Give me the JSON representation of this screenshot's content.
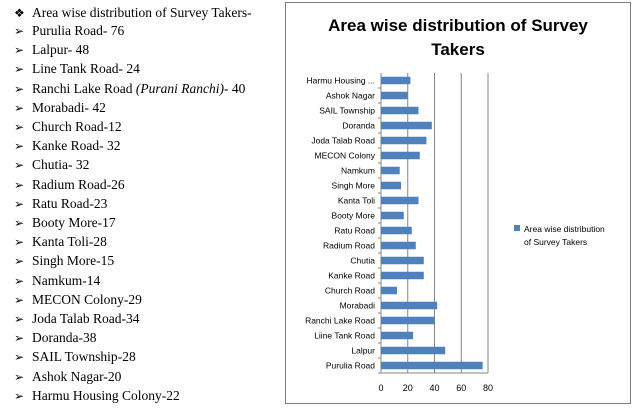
{
  "list": {
    "heading": "Area wise distribution of Survey Takers-",
    "heading_bullet": "❖",
    "item_bullet": "➢",
    "items": [
      {
        "name": "Purulia Road",
        "sep": "- ",
        "value": "76"
      },
      {
        "name": "Lalpur",
        "sep": "- ",
        "value": "48"
      },
      {
        "name": "Line Tank Road",
        "sep": "- ",
        "value": "24"
      },
      {
        "name": "Ranchi Lake Road ",
        "italic": "(Purani Ranchi)",
        "sep": "- ",
        "value": "40"
      },
      {
        "name": "Morabadi",
        "sep": "- ",
        "value": "42"
      },
      {
        "name": "Church Road",
        "sep": "-",
        "value": "12"
      },
      {
        "name": "Kanke Road",
        "sep": "- ",
        "value": "32"
      },
      {
        "name": "Chutia",
        "sep": "- ",
        "value": "32"
      },
      {
        "name": "Radium Road",
        "sep": "-",
        "value": "26"
      },
      {
        "name": "Ratu Road",
        "sep": "-",
        "value": "23"
      },
      {
        "name": "Booty More",
        "sep": "-",
        "value": "17"
      },
      {
        "name": "Kanta Toli",
        "sep": "-",
        "value": "28"
      },
      {
        "name": "Singh More",
        "sep": "-",
        "value": "15"
      },
      {
        "name": "Namkum",
        "sep": "-",
        "value": "14"
      },
      {
        "name": "MECON Colony",
        "sep": "-",
        "value": "29"
      },
      {
        "name": "Joda Talab Road",
        "sep": "-",
        "value": "34"
      },
      {
        "name": "Doranda",
        "sep": "-",
        "value": "38"
      },
      {
        "name": "SAIL Township",
        "sep": "-",
        "value": "28"
      },
      {
        "name": "Ashok Nagar",
        "sep": "-",
        "value": "20"
      },
      {
        "name": "Harmu Housing Colony",
        "sep": "-",
        "value": "22"
      }
    ]
  },
  "colors": {
    "bar": "#4f81bd",
    "grid": "#868686",
    "axis": "#868686",
    "border": "#7f7f7f"
  },
  "chart_data": {
    "type": "bar",
    "orientation": "horizontal",
    "title": "Area wise distribution of Survey Takers",
    "title_lines": [
      "Area wise distribution of Survey",
      "Takers"
    ],
    "categories": [
      "Purulia Road",
      "Lalpur",
      "Liine Tank Road",
      "Ranchi Lake Road",
      "Morabadi",
      "Church Road",
      "Kanke Road",
      "Chutia",
      "Radium Road",
      "Ratu Road",
      "Booty More",
      "Kanta Toli",
      "Singh More",
      "Namkum",
      "MECON Colony",
      "Joda Talab Road",
      "Doranda",
      "SAIL Township",
      "Ashok Nagar",
      "Harmu Housing ..."
    ],
    "series": [
      {
        "name": "Area wise distribution of Survey Takers",
        "legend_lines": [
          "Area wise distribution",
          "of Survey Takers"
        ],
        "values": [
          76,
          48,
          24,
          40,
          42,
          12,
          32,
          32,
          26,
          23,
          17,
          28,
          15,
          14,
          29,
          34,
          38,
          28,
          20,
          22
        ]
      }
    ],
    "xlim": [
      0,
      80
    ],
    "xticks": [
      "0",
      "20",
      "40",
      "60",
      "80"
    ],
    "grid": true,
    "legend_position": "right"
  }
}
